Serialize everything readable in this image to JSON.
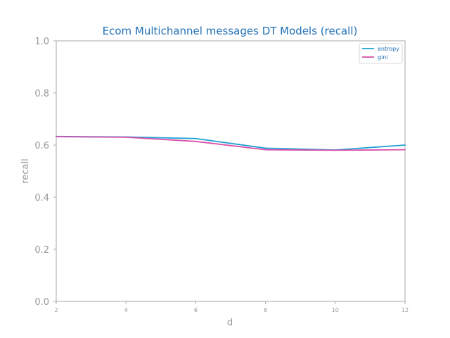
{
  "chart_data": {
    "type": "line",
    "title": "Ecom Multichannel messages DT Models (recall)",
    "xlabel": "d",
    "ylabel": "recall",
    "x": [
      2,
      4,
      6,
      8,
      10,
      12
    ],
    "xticks": [
      "2",
      "4",
      "6",
      "8",
      "10",
      "12"
    ],
    "yticks": [
      "0.0",
      "0.2",
      "0.4",
      "0.6",
      "0.8",
      "1.0"
    ],
    "xlim": [
      2,
      12
    ],
    "ylim": [
      0,
      1
    ],
    "grid": false,
    "legend_position": "top-right",
    "series": [
      {
        "name": "entropy",
        "color": "#1f9fd6",
        "values": [
          0.633,
          0.631,
          0.625,
          0.588,
          0.581,
          0.6
        ]
      },
      {
        "name": "gini",
        "color": "#d94fa8",
        "values": [
          0.632,
          0.63,
          0.614,
          0.582,
          0.58,
          0.582
        ]
      }
    ]
  }
}
